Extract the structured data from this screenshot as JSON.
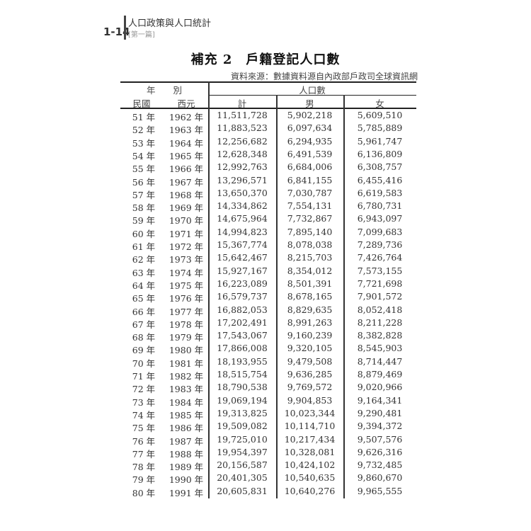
{
  "header": {
    "page_number": "1-14",
    "book_title": "人口政策與人口統計",
    "part_label": "[第一篇]"
  },
  "table": {
    "title": "補充 2　戶籍登記人口數",
    "source": "資料來源：數據資料源自內政部戶政司全球資訊網",
    "headers": {
      "year_group": "年　　別",
      "roc": "民國",
      "ad": "西元",
      "population_group": "人口數",
      "total": "計",
      "male": "男",
      "female": "女"
    },
    "rows": [
      [
        "51 年",
        "1962 年",
        "11,511,728",
        "5,902,218",
        "5,609,510"
      ],
      [
        "52 年",
        "1963 年",
        "11,883,523",
        "6,097,634",
        "5,785,889"
      ],
      [
        "53 年",
        "1964 年",
        "12,256,682",
        "6,294,935",
        "5,961,747"
      ],
      [
        "54 年",
        "1965 年",
        "12,628,348",
        "6,491,539",
        "6,136,809"
      ],
      [
        "55 年",
        "1966 年",
        "12,992,763",
        "6,684,006",
        "6,308,757"
      ],
      [
        "56 年",
        "1967 年",
        "13,296,571",
        "6,841,155",
        "6,455,416"
      ],
      [
        "57 年",
        "1968 年",
        "13,650,370",
        "7,030,787",
        "6,619,583"
      ],
      [
        "58 年",
        "1969 年",
        "14,334,862",
        "7,554,131",
        "6,780,731"
      ],
      [
        "59 年",
        "1970 年",
        "14,675,964",
        "7,732,867",
        "6,943,097"
      ],
      [
        "60 年",
        "1971 年",
        "14,994,823",
        "7,895,140",
        "7,099,683"
      ],
      [
        "61 年",
        "1972 年",
        "15,367,774",
        "8,078,038",
        "7,289,736"
      ],
      [
        "62 年",
        "1973 年",
        "15,642,467",
        "8,215,703",
        "7,426,764"
      ],
      [
        "63 年",
        "1974 年",
        "15,927,167",
        "8,354,012",
        "7,573,155"
      ],
      [
        "64 年",
        "1975 年",
        "16,223,089",
        "8,501,391",
        "7,721,698"
      ],
      [
        "65 年",
        "1976 年",
        "16,579,737",
        "8,678,165",
        "7,901,572"
      ],
      [
        "66 年",
        "1977 年",
        "16,882,053",
        "8,829,635",
        "8,052,418"
      ],
      [
        "67 年",
        "1978 年",
        "17,202,491",
        "8,991,263",
        "8,211,228"
      ],
      [
        "68 年",
        "1979 年",
        "17,543,067",
        "9,160,239",
        "8,382,828"
      ],
      [
        "69 年",
        "1980 年",
        "17,866,008",
        "9,320,105",
        "8,545,903"
      ],
      [
        "70 年",
        "1981 年",
        "18,193,955",
        "9,479,508",
        "8,714,447"
      ],
      [
        "71 年",
        "1982 年",
        "18,515,754",
        "9,636,285",
        "8,879,469"
      ],
      [
        "72 年",
        "1983 年",
        "18,790,538",
        "9,769,572",
        "9,020,966"
      ],
      [
        "73 年",
        "1984 年",
        "19,069,194",
        "9,904,853",
        "9,164,341"
      ],
      [
        "74 年",
        "1985 年",
        "19,313,825",
        "10,023,344",
        "9,290,481"
      ],
      [
        "75 年",
        "1986 年",
        "19,509,082",
        "10,114,710",
        "9,394,372"
      ],
      [
        "76 年",
        "1987 年",
        "19,725,010",
        "10,217,434",
        "9,507,576"
      ],
      [
        "77 年",
        "1988 年",
        "19,954,397",
        "10,328,081",
        "9,626,316"
      ],
      [
        "78 年",
        "1989 年",
        "20,156,587",
        "10,424,102",
        "9,732,485"
      ],
      [
        "79 年",
        "1990 年",
        "20,401,305",
        "10,540,635",
        "9,860,670"
      ],
      [
        "80 年",
        "1991 年",
        "20,605,831",
        "10,640,276",
        "9,965,555"
      ]
    ]
  }
}
